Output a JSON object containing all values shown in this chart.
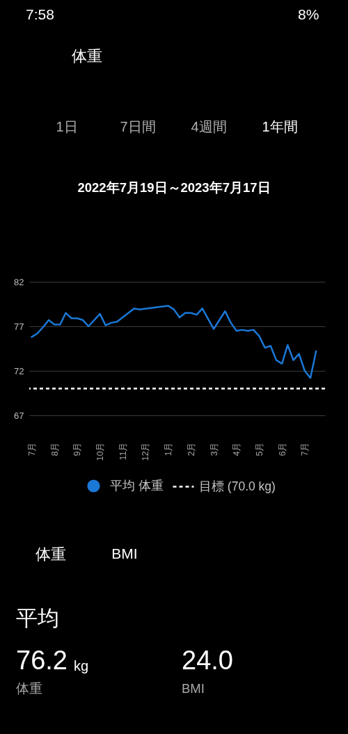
{
  "chart_data": {
    "type": "line",
    "title": "体重",
    "subtitle": "2022年7月19日～2023年7月17日",
    "annotations": [
      "7:58",
      "8%",
      "1日",
      "7日間",
      "4週間",
      "1年間",
      "体重",
      "BMI",
      "平均",
      "76.2",
      "kg",
      "体重",
      "24.0",
      "BMI"
    ],
    "x": [
      "2022-07-20",
      "2022-07-27",
      "2022-08-03",
      "2022-08-10",
      "2022-08-17",
      "2022-08-24",
      "2022-08-31",
      "2022-09-07",
      "2022-09-14",
      "2022-09-21",
      "2022-09-28",
      "2022-10-12",
      "2022-10-19",
      "2022-10-26",
      "2022-11-02",
      "2022-11-23",
      "2022-11-30",
      "2023-01-04",
      "2023-01-11",
      "2023-01-18",
      "2023-01-25",
      "2023-02-01",
      "2023-02-08",
      "2023-02-15",
      "2023-03-01",
      "2023-03-15",
      "2023-03-22",
      "2023-03-29",
      "2023-04-05",
      "2023-04-12",
      "2023-04-19",
      "2023-04-26",
      "2023-05-03",
      "2023-05-10",
      "2023-05-17",
      "2023-05-24",
      "2023-05-31",
      "2023-06-07",
      "2023-06-14",
      "2023-06-21",
      "2023-06-28",
      "2023-07-05"
    ],
    "series": [
      {
        "name": "平均 体重",
        "color": "#1a78d6",
        "values": [
          75.8,
          76.2,
          76.9,
          77.7,
          77.2,
          77.2,
          78.5,
          77.9,
          77.9,
          77.7,
          77.0,
          78.4,
          77.1,
          77.4,
          77.5,
          79.0,
          78.9,
          79.3,
          78.9,
          78.0,
          78.5,
          78.5,
          78.3,
          79.0,
          76.7,
          78.7,
          77.4,
          76.5,
          76.6,
          76.5,
          76.6,
          75.9,
          74.6,
          74.8,
          73.2,
          72.8,
          74.9,
          73.2,
          73.9,
          72.0,
          71.2,
          74.2
        ]
      }
    ],
    "xlim": [
      "2022-07-17",
      "2023-07-16"
    ],
    "ylim": [
      67,
      82
    ],
    "xticks": [
      {
        "value": "2022-07-20",
        "label": "7月"
      },
      {
        "value": "2022-08-17",
        "label": "8月"
      },
      {
        "value": "2022-09-14",
        "label": "9月"
      },
      {
        "value": "2022-10-12",
        "label": "10月"
      },
      {
        "value": "2022-11-09",
        "label": "11月"
      },
      {
        "value": "2022-12-07",
        "label": "12月"
      },
      {
        "value": "2023-01-04",
        "label": "1月"
      },
      {
        "value": "2023-02-01",
        "label": "2月"
      },
      {
        "value": "2023-03-01",
        "label": "3月"
      },
      {
        "value": "2023-03-29",
        "label": "4月"
      },
      {
        "value": "2023-04-26",
        "label": "5月"
      },
      {
        "value": "2023-05-24",
        "label": "6月"
      },
      {
        "value": "2023-06-21",
        "label": "7月"
      }
    ],
    "yticks": [
      67,
      72,
      77,
      82
    ],
    "grid": "y",
    "legend": "bottom",
    "ref_lines": [
      {
        "axis": "y",
        "value": 70.0,
        "label": "目標 (70.0 kg)",
        "color": "#ffffff",
        "line_style": "dashed"
      }
    ]
  }
}
